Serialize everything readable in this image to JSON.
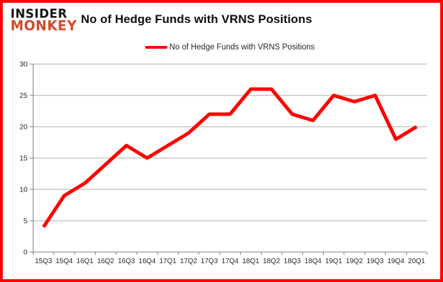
{
  "brand": {
    "line1": "INSIDER",
    "line2": "MONKEY",
    "color": "#d14a2c"
  },
  "header": {
    "title": "No of Hedge Funds with VRNS Positions"
  },
  "legend": {
    "label": "No of Hedge Funds with VRNS Positions",
    "color": "#ff0000"
  },
  "frame": {
    "border_color": "#ff0000"
  },
  "chart_data": {
    "type": "line",
    "title": "No of Hedge Funds with VRNS Positions",
    "categories": [
      "15Q3",
      "15Q4",
      "16Q1",
      "16Q2",
      "16Q3",
      "16Q4",
      "17Q1",
      "17Q2",
      "17Q3",
      "17Q4",
      "18Q1",
      "18Q2",
      "18Q3",
      "18Q4",
      "19Q1",
      "19Q2",
      "19Q3",
      "19Q4",
      "20Q1"
    ],
    "series": [
      {
        "name": "No of Hedge Funds with VRNS Positions",
        "color": "#ff0000",
        "values": [
          4,
          9,
          11,
          14,
          17,
          15,
          17,
          19,
          22,
          22,
          26,
          26,
          22,
          21,
          25,
          24,
          25,
          18,
          20
        ]
      }
    ],
    "xlabel": "",
    "ylabel": "",
    "ylim": [
      0,
      30
    ],
    "ytick_step": 5,
    "yticks": [
      0,
      5,
      10,
      15,
      20,
      25,
      30
    ],
    "grid": "horizontal",
    "legend_position": "top",
    "colors": {
      "gridline": "#ababab",
      "axis": "#7f7f7f",
      "tick_label": "#262626"
    }
  }
}
